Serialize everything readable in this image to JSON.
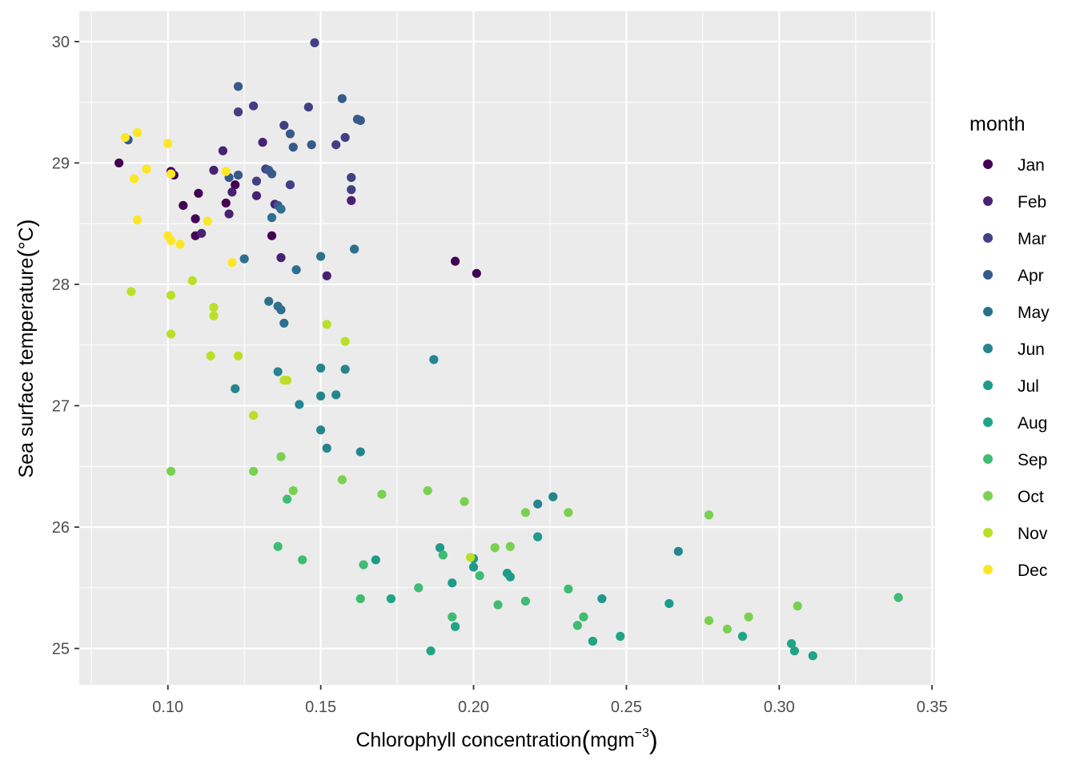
{
  "chart_data": {
    "type": "scatter",
    "xlabel": "Chlorophyll concentration",
    "xlabel_unit": "mgm",
    "xlabel_exp": "−3",
    "ylabel": "Sea surface temperature",
    "ylabel_unit": "°C",
    "xlim": [
      0.071,
      0.351
    ],
    "ylim": [
      24.7,
      30.25
    ],
    "x_ticks": [
      0.1,
      0.15,
      0.2,
      0.25,
      0.3,
      0.35
    ],
    "x_tick_labels": [
      "0.10",
      "0.15",
      "0.20",
      "0.25",
      "0.30",
      "0.35"
    ],
    "y_ticks": [
      25,
      26,
      27,
      28,
      29,
      30
    ],
    "y_tick_labels": [
      "25",
      "26",
      "27",
      "28",
      "29",
      "30"
    ],
    "grid": true,
    "legend": {
      "title": "month",
      "placement": "right"
    },
    "series": [
      {
        "name": "Jan",
        "color": "#440154",
        "points": [
          [
            0.084,
            29.0
          ],
          [
            0.101,
            28.93
          ],
          [
            0.102,
            28.9
          ],
          [
            0.105,
            28.65
          ],
          [
            0.109,
            28.54
          ],
          [
            0.109,
            28.4
          ],
          [
            0.11,
            28.75
          ],
          [
            0.119,
            28.67
          ],
          [
            0.122,
            28.82
          ],
          [
            0.134,
            28.4
          ],
          [
            0.194,
            28.19
          ],
          [
            0.201,
            28.09
          ]
        ]
      },
      {
        "name": "Feb",
        "color": "#482173",
        "points": [
          [
            0.111,
            28.42
          ],
          [
            0.115,
            28.94
          ],
          [
            0.118,
            29.1
          ],
          [
            0.12,
            28.58
          ],
          [
            0.121,
            28.76
          ],
          [
            0.129,
            28.73
          ],
          [
            0.131,
            29.17
          ],
          [
            0.135,
            28.66
          ],
          [
            0.137,
            28.22
          ],
          [
            0.152,
            28.07
          ],
          [
            0.16,
            28.69
          ]
        ]
      },
      {
        "name": "Mar",
        "color": "#433E85",
        "points": [
          [
            0.123,
            29.42
          ],
          [
            0.128,
            29.47
          ],
          [
            0.129,
            28.85
          ],
          [
            0.132,
            28.95
          ],
          [
            0.138,
            29.31
          ],
          [
            0.14,
            28.82
          ],
          [
            0.146,
            29.46
          ],
          [
            0.148,
            29.99
          ],
          [
            0.155,
            29.15
          ],
          [
            0.158,
            29.21
          ],
          [
            0.16,
            28.78
          ],
          [
            0.16,
            28.88
          ]
        ]
      },
      {
        "name": "Apr",
        "color": "#38598C",
        "points": [
          [
            0.087,
            29.19
          ],
          [
            0.12,
            28.88
          ],
          [
            0.123,
            28.9
          ],
          [
            0.123,
            29.63
          ],
          [
            0.133,
            28.94
          ],
          [
            0.134,
            28.91
          ],
          [
            0.136,
            28.65
          ],
          [
            0.14,
            29.24
          ],
          [
            0.141,
            29.13
          ],
          [
            0.147,
            29.15
          ],
          [
            0.157,
            29.53
          ],
          [
            0.162,
            29.36
          ],
          [
            0.163,
            29.35
          ]
        ]
      },
      {
        "name": "May",
        "color": "#2D708E",
        "points": [
          [
            0.125,
            28.21
          ],
          [
            0.133,
            27.86
          ],
          [
            0.134,
            28.55
          ],
          [
            0.136,
            27.82
          ],
          [
            0.137,
            27.79
          ],
          [
            0.137,
            28.62
          ],
          [
            0.138,
            27.68
          ],
          [
            0.142,
            28.12
          ],
          [
            0.15,
            28.23
          ],
          [
            0.161,
            28.29
          ]
        ]
      },
      {
        "name": "Jun",
        "color": "#25858E",
        "points": [
          [
            0.122,
            27.14
          ],
          [
            0.136,
            27.28
          ],
          [
            0.143,
            27.01
          ],
          [
            0.15,
            27.31
          ],
          [
            0.15,
            27.08
          ],
          [
            0.15,
            26.8
          ],
          [
            0.152,
            26.65
          ],
          [
            0.155,
            27.09
          ],
          [
            0.158,
            27.3
          ],
          [
            0.163,
            26.62
          ],
          [
            0.187,
            27.38
          ],
          [
            0.221,
            26.19
          ],
          [
            0.226,
            26.25
          ],
          [
            0.267,
            25.8
          ]
        ]
      },
      {
        "name": "Jul",
        "color": "#1E9B8A",
        "points": [
          [
            0.168,
            25.73
          ],
          [
            0.189,
            25.83
          ],
          [
            0.193,
            25.54
          ],
          [
            0.2,
            25.74
          ],
          [
            0.2,
            25.67
          ],
          [
            0.211,
            25.62
          ],
          [
            0.212,
            25.59
          ],
          [
            0.221,
            25.92
          ],
          [
            0.242,
            25.41
          ],
          [
            0.264,
            25.37
          ]
        ]
      },
      {
        "name": "Aug",
        "color": "#20A486",
        "points": [
          [
            0.173,
            25.41
          ],
          [
            0.186,
            24.98
          ],
          [
            0.194,
            25.18
          ],
          [
            0.239,
            25.06
          ],
          [
            0.248,
            25.1
          ],
          [
            0.288,
            25.1
          ],
          [
            0.304,
            25.04
          ],
          [
            0.305,
            24.98
          ],
          [
            0.311,
            24.94
          ]
        ]
      },
      {
        "name": "Sep",
        "color": "#3FBC73",
        "points": [
          [
            0.136,
            25.84
          ],
          [
            0.139,
            26.23
          ],
          [
            0.144,
            25.73
          ],
          [
            0.163,
            25.41
          ],
          [
            0.164,
            25.69
          ],
          [
            0.182,
            25.5
          ],
          [
            0.19,
            25.77
          ],
          [
            0.193,
            25.26
          ],
          [
            0.202,
            25.6
          ],
          [
            0.208,
            25.36
          ],
          [
            0.217,
            25.39
          ],
          [
            0.231,
            25.49
          ],
          [
            0.234,
            25.19
          ],
          [
            0.236,
            25.26
          ],
          [
            0.339,
            25.42
          ]
        ]
      },
      {
        "name": "Oct",
        "color": "#7AD151",
        "points": [
          [
            0.101,
            26.46
          ],
          [
            0.128,
            26.46
          ],
          [
            0.137,
            26.58
          ],
          [
            0.141,
            26.3
          ],
          [
            0.157,
            26.39
          ],
          [
            0.17,
            26.27
          ],
          [
            0.185,
            26.3
          ],
          [
            0.197,
            26.21
          ],
          [
            0.207,
            25.83
          ],
          [
            0.212,
            25.84
          ],
          [
            0.217,
            26.12
          ],
          [
            0.231,
            26.12
          ],
          [
            0.277,
            26.1
          ],
          [
            0.277,
            25.23
          ],
          [
            0.283,
            25.16
          ],
          [
            0.29,
            25.26
          ],
          [
            0.306,
            25.35
          ]
        ]
      },
      {
        "name": "Nov",
        "color": "#BBDF27",
        "points": [
          [
            0.088,
            27.94
          ],
          [
            0.101,
            27.91
          ],
          [
            0.101,
            27.59
          ],
          [
            0.108,
            28.03
          ],
          [
            0.114,
            27.41
          ],
          [
            0.115,
            27.81
          ],
          [
            0.115,
            27.74
          ],
          [
            0.123,
            27.41
          ],
          [
            0.128,
            26.92
          ],
          [
            0.138,
            27.21
          ],
          [
            0.139,
            27.21
          ],
          [
            0.152,
            27.67
          ],
          [
            0.158,
            27.53
          ],
          [
            0.199,
            25.75
          ]
        ]
      },
      {
        "name": "Dec",
        "color": "#FDE725",
        "points": [
          [
            0.086,
            29.21
          ],
          [
            0.089,
            28.87
          ],
          [
            0.09,
            29.25
          ],
          [
            0.09,
            28.53
          ],
          [
            0.093,
            28.95
          ],
          [
            0.1,
            29.16
          ],
          [
            0.1,
            28.4
          ],
          [
            0.101,
            28.36
          ],
          [
            0.101,
            28.91
          ],
          [
            0.104,
            28.33
          ],
          [
            0.113,
            28.52
          ],
          [
            0.119,
            28.93
          ],
          [
            0.121,
            28.18
          ]
        ]
      }
    ]
  }
}
